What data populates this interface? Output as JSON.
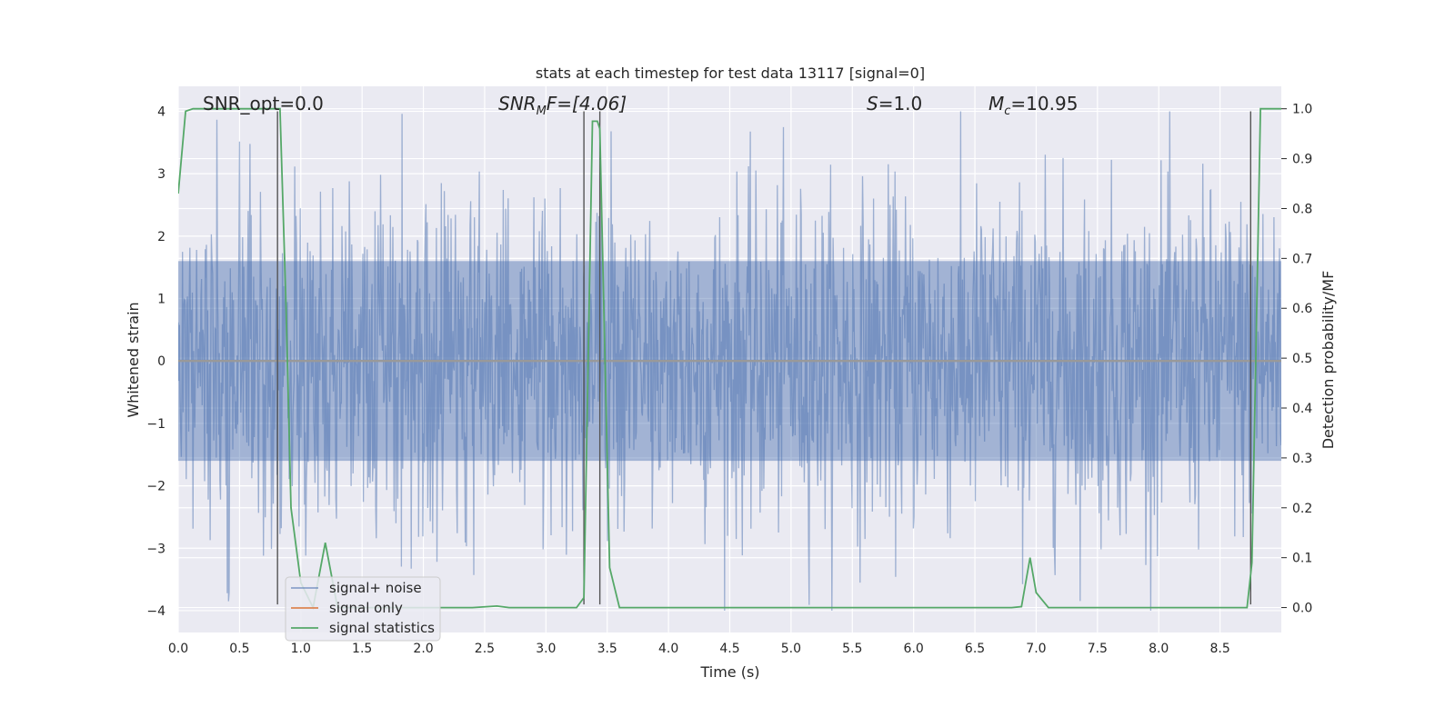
{
  "chart_data": {
    "type": "line",
    "title": "stats at each timestep for test data 13117 [signal=0]",
    "xlabel": "Time (s)",
    "ylabel": "Whitened strain",
    "ylabel_right": "Detection probability/MF",
    "xlim": [
      0.0,
      9.0
    ],
    "ylim": [
      -4.35,
      4.4
    ],
    "ylim_right": [
      -0.05,
      1.045
    ],
    "x_ticks": [
      "0.0",
      "0.5",
      "1.0",
      "1.5",
      "2.0",
      "2.5",
      "3.0",
      "3.5",
      "4.0",
      "4.5",
      "5.0",
      "5.5",
      "6.0",
      "6.5",
      "7.0",
      "7.5",
      "8.0",
      "8.5"
    ],
    "x_tick_values": [
      0.0,
      0.5,
      1.0,
      1.5,
      2.0,
      2.5,
      3.0,
      3.5,
      4.0,
      4.5,
      5.0,
      5.5,
      6.0,
      6.5,
      7.0,
      7.5,
      8.0,
      8.5
    ],
    "y_ticks": [
      "4",
      "3",
      "2",
      "1",
      "0",
      "−1",
      "−2",
      "−3",
      "−4"
    ],
    "y_tick_values": [
      4,
      3,
      2,
      1,
      0,
      -1,
      -2,
      -3,
      -4
    ],
    "y_right_ticks": [
      "1.0",
      "0.9",
      "0.8",
      "0.7",
      "0.6",
      "0.5",
      "0.4",
      "0.3",
      "0.2",
      "0.1",
      "0.0"
    ],
    "y_right_tick_values": [
      1.0,
      0.9,
      0.8,
      0.7,
      0.6,
      0.5,
      0.4,
      0.3,
      0.2,
      0.1,
      0.0
    ],
    "grid": true,
    "legend_position": "lower-left",
    "annotations": {
      "snr_opt": "SNR_opt=0.0",
      "snr_mf_base": "SNR",
      "snr_mf_sub": "M",
      "snr_mf_rest": "F=[4.06]",
      "s_italic": "S",
      "s_rest": "=1.0",
      "mc_base": "M",
      "mc_sub": "c",
      "mc_rest": "=10.95"
    },
    "vertical_lines_x": [
      0.81,
      3.31,
      3.44,
      8.75
    ],
    "series": [
      {
        "name": "signal+ noise",
        "color": "#4c72b0",
        "axis": "left",
        "duration": 9.0,
        "sample_count": 1800,
        "amplitude_sigma": 1.0,
        "peak_range": [
          -4.0,
          4.0
        ]
      },
      {
        "name": "signal only",
        "color": "#dd8452",
        "axis": "left",
        "x": [
          0.0,
          9.0
        ],
        "y": [
          0.0,
          0.0
        ]
      },
      {
        "name": "signal statistics",
        "color": "#55a868",
        "axis": "right",
        "x": [
          0.0,
          0.06,
          0.12,
          0.2,
          0.5,
          0.6,
          0.7,
          0.8,
          0.83,
          0.88,
          0.92,
          1.0,
          1.1,
          1.2,
          1.3,
          1.4,
          1.6,
          2.0,
          2.4,
          2.6,
          2.7,
          3.0,
          3.25,
          3.31,
          3.38,
          3.42,
          3.44,
          3.52,
          3.6,
          4.0,
          5.0,
          6.0,
          6.8,
          6.88,
          6.95,
          7.0,
          7.1,
          7.5,
          8.0,
          8.5,
          8.72,
          8.76,
          8.83,
          8.9,
          9.0
        ],
        "y": [
          0.83,
          0.995,
          1.0,
          1.0,
          1.0,
          1.0,
          1.0,
          1.0,
          1.0,
          0.6,
          0.2,
          0.05,
          0.0,
          0.13,
          0.0,
          0.0,
          0.0,
          0.0,
          0.0,
          0.003,
          0.0,
          0.0,
          0.0,
          0.02,
          0.975,
          0.975,
          0.96,
          0.08,
          0.0,
          0.0,
          0.0,
          0.0,
          0.0,
          0.002,
          0.1,
          0.03,
          0.0,
          0.0,
          0.0,
          0.0,
          0.0,
          0.09,
          1.0,
          1.0,
          1.0
        ]
      }
    ]
  }
}
